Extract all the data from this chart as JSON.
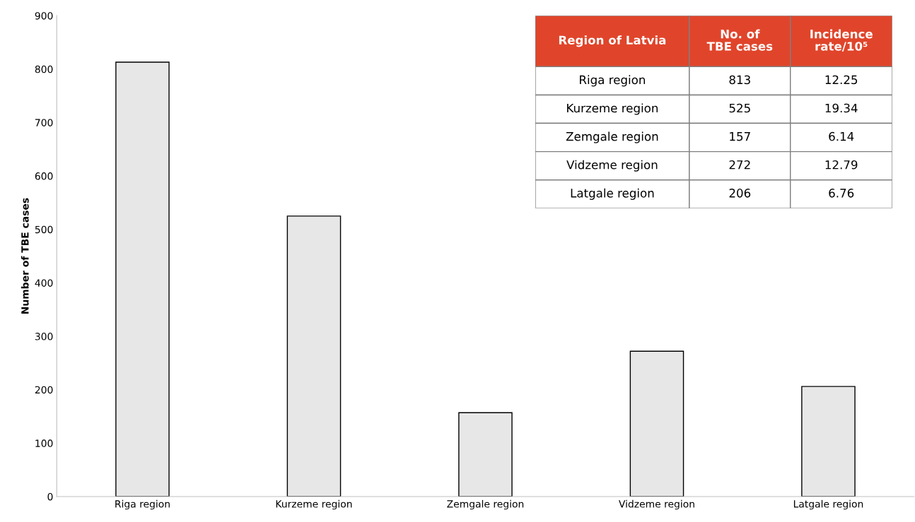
{
  "chart_data": [
    {
      "type": "bar",
      "ylabel": "Number of TBE cases",
      "categories": [
        "Riga region",
        "Kurzeme region",
        "Zemgale region",
        "Vidzeme region",
        "Latgale region"
      ],
      "values": [
        813,
        525,
        157,
        272,
        206
      ],
      "color": "#e7e7e7",
      "ylim": [
        0,
        900
      ],
      "yticks": [
        0,
        100,
        200,
        300,
        400,
        500,
        600,
        700,
        800,
        900
      ],
      "grid": false,
      "legend": false
    },
    {
      "type": "other",
      "categories": [
        "Region of Latvia",
        "No. of TBE cases",
        "Incidence rate/10⁵"
      ],
      "color": "#e0452b",
      "cell_labels": [
        [
          "Riga region",
          "813",
          "12.25"
        ],
        [
          "Kurzeme region",
          "525",
          "19.34"
        ],
        [
          "Zemgale region",
          "157",
          "6.14"
        ],
        [
          "Vidzeme region",
          "272",
          "12.79"
        ],
        [
          "Latgale region",
          "206",
          "6.76"
        ]
      ]
    }
  ]
}
